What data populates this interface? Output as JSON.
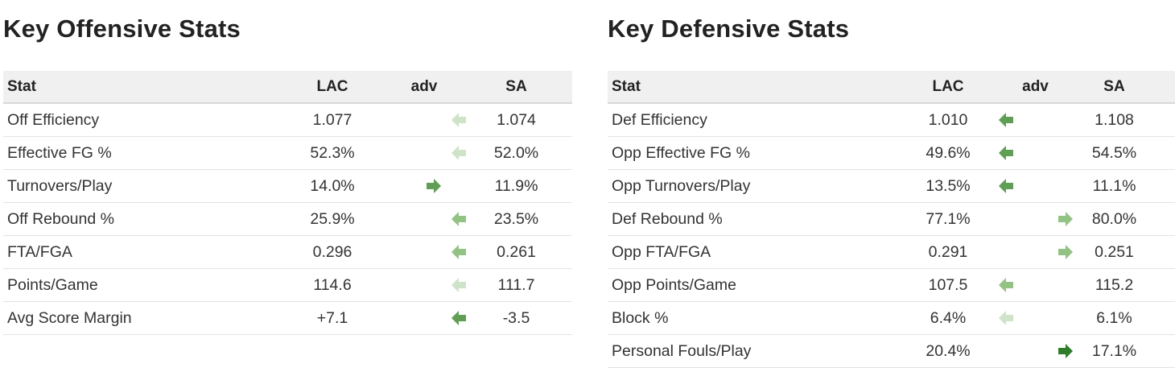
{
  "offense": {
    "title": "Key Offensive Stats",
    "headers": {
      "stat": "Stat",
      "lac": "LAC",
      "adv": "adv",
      "sa": "SA"
    },
    "rows": [
      {
        "stat": "Off Efficiency",
        "lac": "1.077",
        "sa": "1.074",
        "adv": "LAC",
        "strength": "weak"
      },
      {
        "stat": "Effective FG %",
        "lac": "52.3%",
        "sa": "52.0%",
        "adv": "LAC",
        "strength": "weak"
      },
      {
        "stat": "Turnovers/Play",
        "lac": "14.0%",
        "sa": "11.9%",
        "adv": "SA",
        "strength": "medium"
      },
      {
        "stat": "Off Rebound %",
        "lac": "25.9%",
        "sa": "23.5%",
        "adv": "LAC",
        "strength": "medium-light"
      },
      {
        "stat": "FTA/FGA",
        "lac": "0.296",
        "sa": "0.261",
        "adv": "LAC",
        "strength": "medium-light"
      },
      {
        "stat": "Points/Game",
        "lac": "114.6",
        "sa": "111.7",
        "adv": "LAC",
        "strength": "weak"
      },
      {
        "stat": "Avg Score Margin",
        "lac": "+7.1",
        "sa": "-3.5",
        "adv": "LAC",
        "strength": "medium"
      }
    ]
  },
  "defense": {
    "title": "Key Defensive Stats",
    "headers": {
      "stat": "Stat",
      "lac": "LAC",
      "adv": "adv",
      "sa": "SA"
    },
    "rows": [
      {
        "stat": "Def Efficiency",
        "lac": "1.010",
        "sa": "1.108",
        "adv": "LAC",
        "strength": "medium"
      },
      {
        "stat": "Opp Effective FG %",
        "lac": "49.6%",
        "sa": "54.5%",
        "adv": "LAC",
        "strength": "medium"
      },
      {
        "stat": "Opp Turnovers/Play",
        "lac": "13.5%",
        "sa": "11.1%",
        "adv": "LAC",
        "strength": "medium"
      },
      {
        "stat": "Def Rebound %",
        "lac": "77.1%",
        "sa": "80.0%",
        "adv": "SA",
        "strength": "medium-light"
      },
      {
        "stat": "Opp FTA/FGA",
        "lac": "0.291",
        "sa": "0.251",
        "adv": "SA",
        "strength": "medium-light"
      },
      {
        "stat": "Opp Points/Game",
        "lac": "107.5",
        "sa": "115.2",
        "adv": "LAC",
        "strength": "medium-light"
      },
      {
        "stat": "Block %",
        "lac": "6.4%",
        "sa": "6.1%",
        "adv": "LAC",
        "strength": "weak"
      },
      {
        "stat": "Personal Fouls/Play",
        "lac": "20.4%",
        "sa": "17.1%",
        "adv": "SA",
        "strength": "strong"
      }
    ]
  },
  "arrow_colors": {
    "weak": "#cfe3c9",
    "medium-light": "#93c285",
    "medium": "#5f9e54",
    "strong": "#2f7d2a"
  },
  "icons": {
    "lac_advantage": "arrow-left-icon",
    "sa_advantage": "arrow-right-icon"
  }
}
